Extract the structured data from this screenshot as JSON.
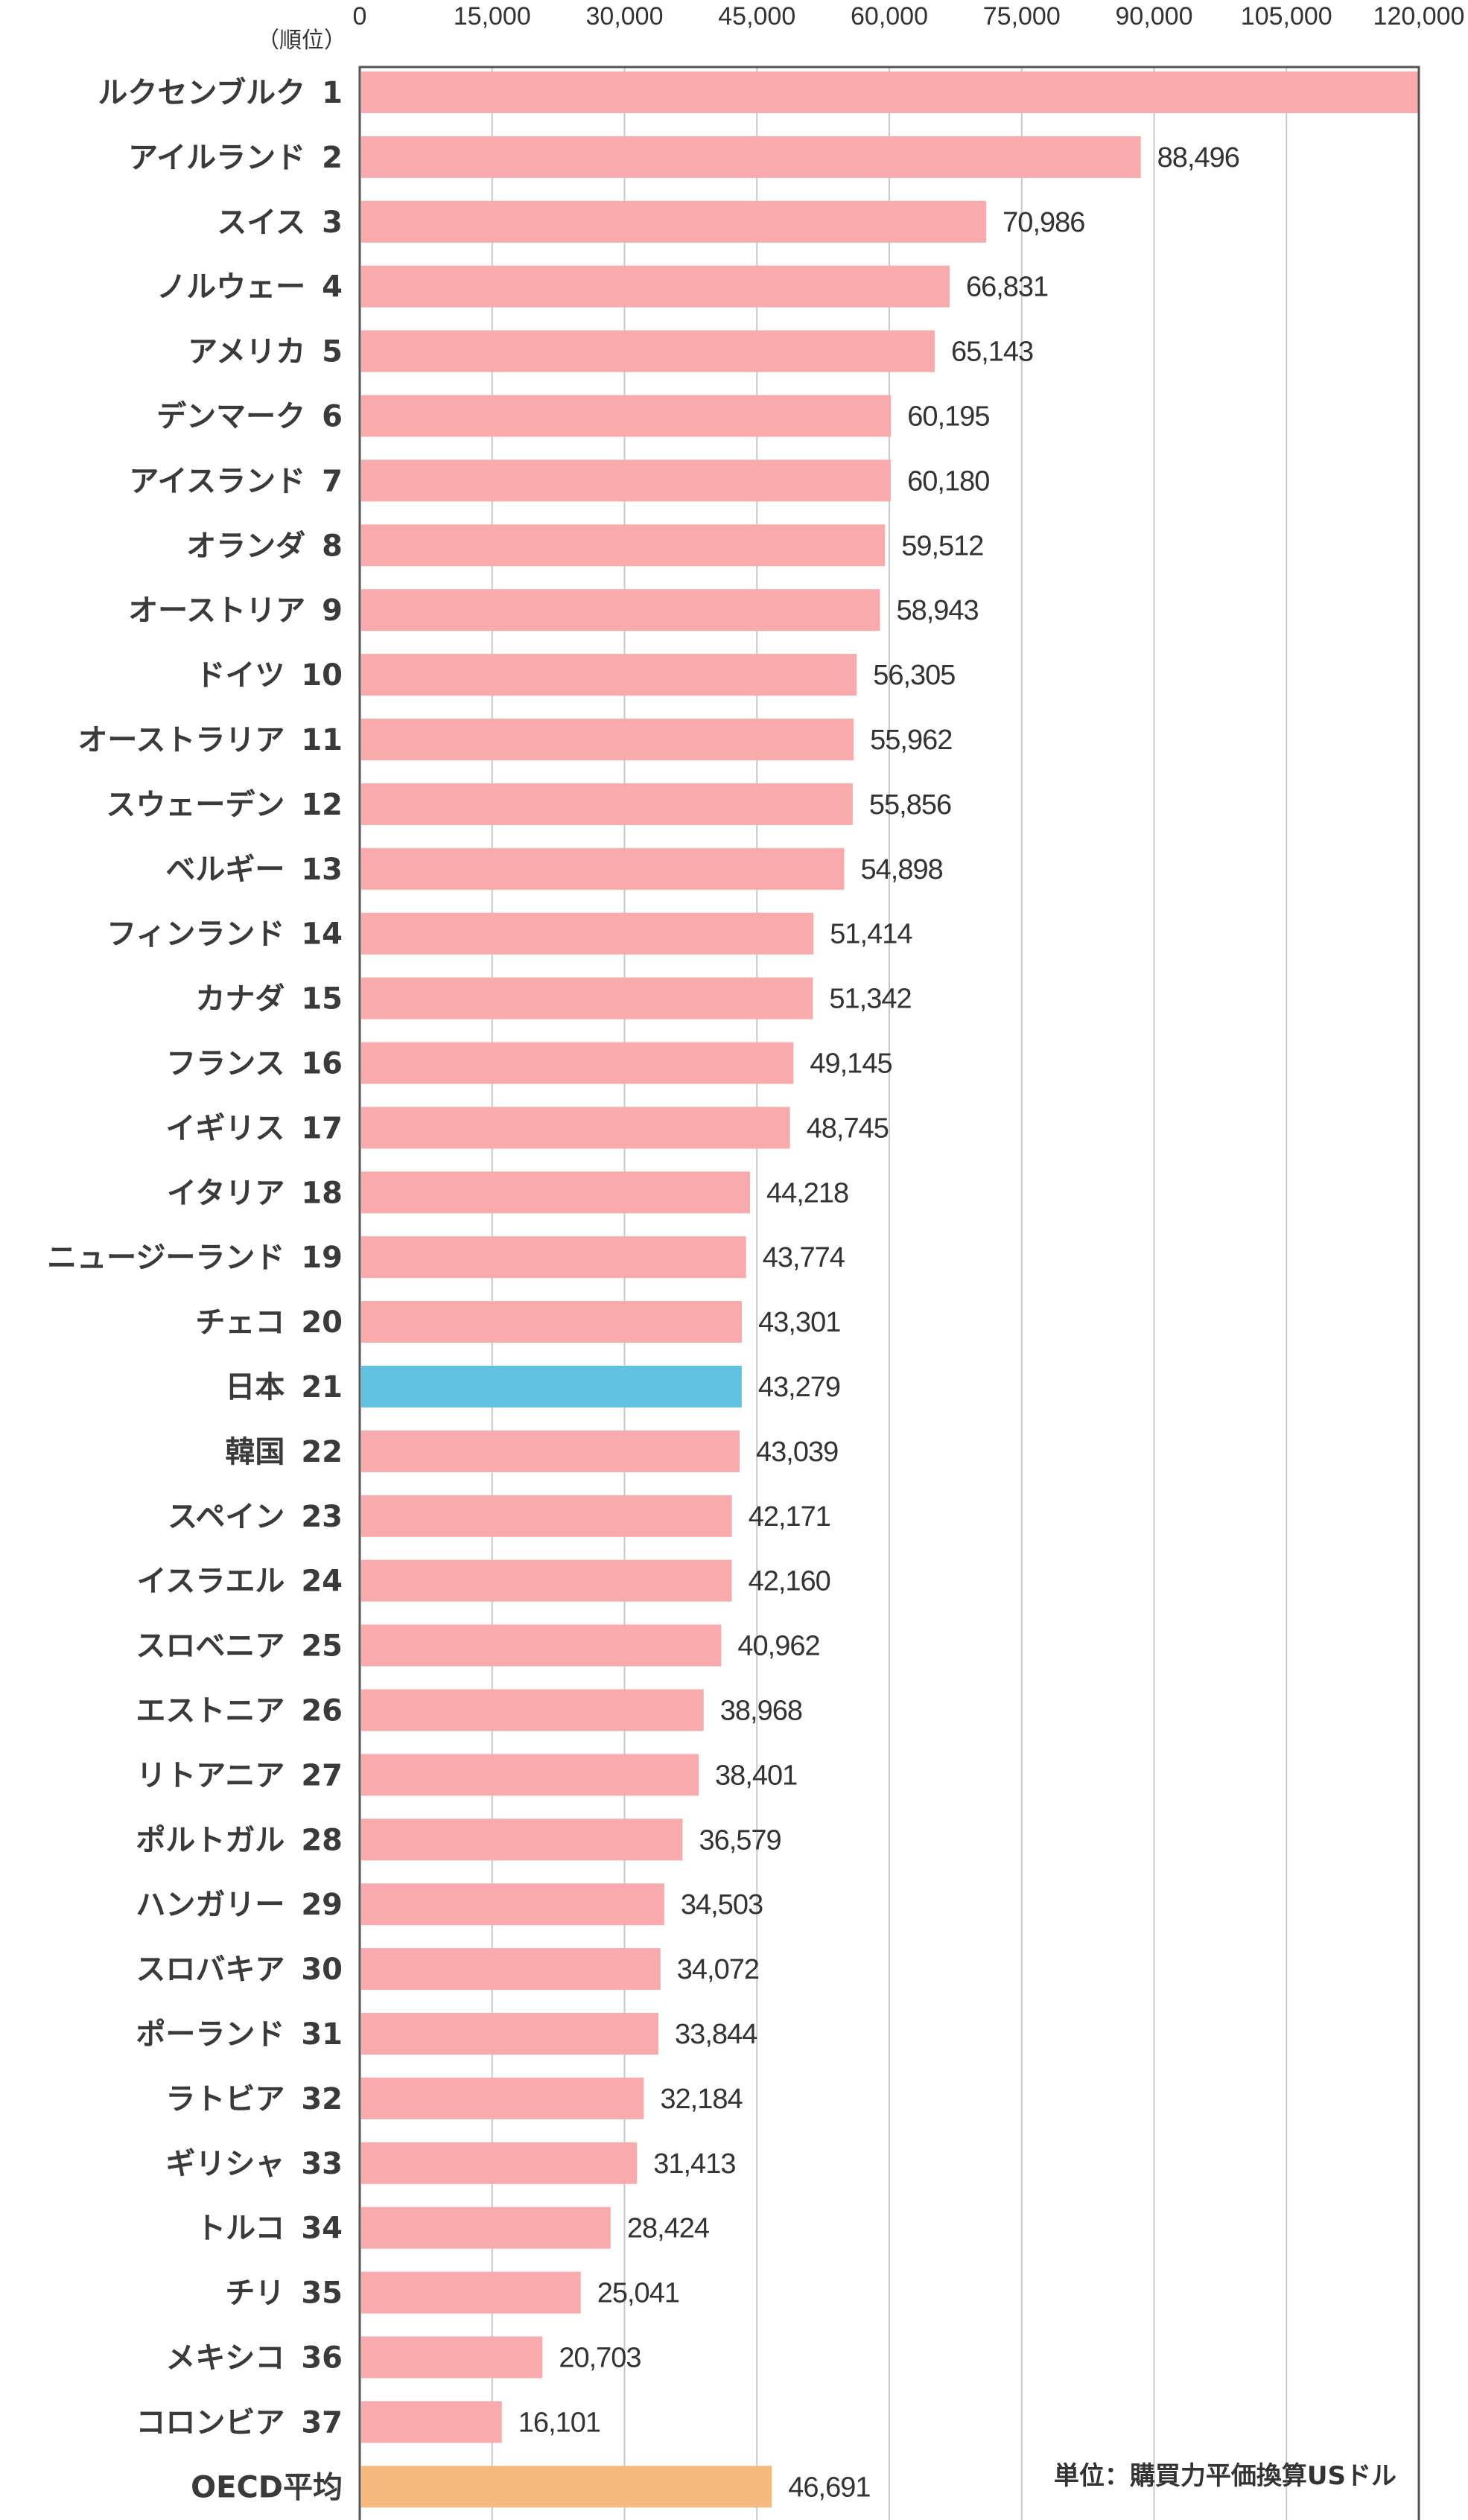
{
  "chart_data": {
    "type": "bar",
    "orientation": "horizontal",
    "header": "（順位）",
    "unit": "単位：購買力平価換算USドル",
    "x_ticks": [
      "0",
      "15,000",
      "30,000",
      "45,000",
      "60,000",
      "75,000",
      "90,000",
      "105,000",
      "120,000"
    ],
    "xlim": [
      0,
      120000
    ],
    "grid": true,
    "colors": {
      "default": "#f8aaac",
      "highlight": "#62c1de",
      "average": "#f7ba7e",
      "grid": "#c8c8c8",
      "axis": "#555555"
    },
    "bars": [
      {
        "name": "ルクセンブルク",
        "rank": "1",
        "value": 121293,
        "label": ""
      },
      {
        "name": "アイルランド",
        "rank": "2",
        "value": 88496,
        "label": "88,496"
      },
      {
        "name": "スイス",
        "rank": "3",
        "value": 70986,
        "label": "70,986"
      },
      {
        "name": "ノルウェー",
        "rank": "4",
        "value": 66831,
        "label": "66,831"
      },
      {
        "name": "アメリカ",
        "rank": "5",
        "value": 65143,
        "label": "65,143"
      },
      {
        "name": "デンマーク",
        "rank": "6",
        "value": 60195,
        "label": "60,195"
      },
      {
        "name": "アイスランド",
        "rank": "7",
        "value": 60180,
        "label": "60,180"
      },
      {
        "name": "オランダ",
        "rank": "8",
        "value": 59512,
        "label": "59,512"
      },
      {
        "name": "オーストリア",
        "rank": "9",
        "value": 58943,
        "label": "58,943"
      },
      {
        "name": "ドイツ",
        "rank": "10",
        "value": 56305,
        "label": "56,305"
      },
      {
        "name": "オーストラリア",
        "rank": "11",
        "value": 55962,
        "label": "55,962"
      },
      {
        "name": "スウェーデン",
        "rank": "12",
        "value": 55856,
        "label": "55,856"
      },
      {
        "name": "ベルギー",
        "rank": "13",
        "value": 54898,
        "label": "54,898"
      },
      {
        "name": "フィンランド",
        "rank": "14",
        "value": 51414,
        "label": "51,414"
      },
      {
        "name": "カナダ",
        "rank": "15",
        "value": 51342,
        "label": "51,342"
      },
      {
        "name": "フランス",
        "rank": "16",
        "value": 49145,
        "label": "49,145"
      },
      {
        "name": "イギリス",
        "rank": "17",
        "value": 48745,
        "label": "48,745"
      },
      {
        "name": "イタリア",
        "rank": "18",
        "value": 44218,
        "label": "44,218"
      },
      {
        "name": "ニュージーランド",
        "rank": "19",
        "value": 43774,
        "label": "43,774"
      },
      {
        "name": "チェコ",
        "rank": "20",
        "value": 43301,
        "label": "43,301"
      },
      {
        "name": "日本",
        "rank": "21",
        "value": 43279,
        "label": "43,279",
        "highlight": true
      },
      {
        "name": "韓国",
        "rank": "22",
        "value": 43039,
        "label": "43,039"
      },
      {
        "name": "スペイン",
        "rank": "23",
        "value": 42171,
        "label": "42,171"
      },
      {
        "name": "イスラエル",
        "rank": "24",
        "value": 42160,
        "label": "42,160"
      },
      {
        "name": "スロベニア",
        "rank": "25",
        "value": 40962,
        "label": "40,962"
      },
      {
        "name": "エストニア",
        "rank": "26",
        "value": 38968,
        "label": "38,968"
      },
      {
        "name": "リトアニア",
        "rank": "27",
        "value": 38401,
        "label": "38,401"
      },
      {
        "name": "ポルトガル",
        "rank": "28",
        "value": 36579,
        "label": "36,579"
      },
      {
        "name": "ハンガリー",
        "rank": "29",
        "value": 34503,
        "label": "34,503"
      },
      {
        "name": "スロバキア",
        "rank": "30",
        "value": 34072,
        "label": "34,072"
      },
      {
        "name": "ポーランド",
        "rank": "31",
        "value": 33844,
        "label": "33,844"
      },
      {
        "name": "ラトビア",
        "rank": "32",
        "value": 32184,
        "label": "32,184"
      },
      {
        "name": "ギリシャ",
        "rank": "33",
        "value": 31413,
        "label": "31,413"
      },
      {
        "name": "トルコ",
        "rank": "34",
        "value": 28424,
        "label": "28,424"
      },
      {
        "name": "チリ",
        "rank": "35",
        "value": 25041,
        "label": "25,041"
      },
      {
        "name": "メキシコ",
        "rank": "36",
        "value": 20703,
        "label": "20,703"
      },
      {
        "name": "コロンビア",
        "rank": "37",
        "value": 16101,
        "label": "16,101"
      },
      {
        "name": "OECD平均",
        "rank": "",
        "value": 46691,
        "label": "46,691",
        "average": true
      }
    ]
  }
}
